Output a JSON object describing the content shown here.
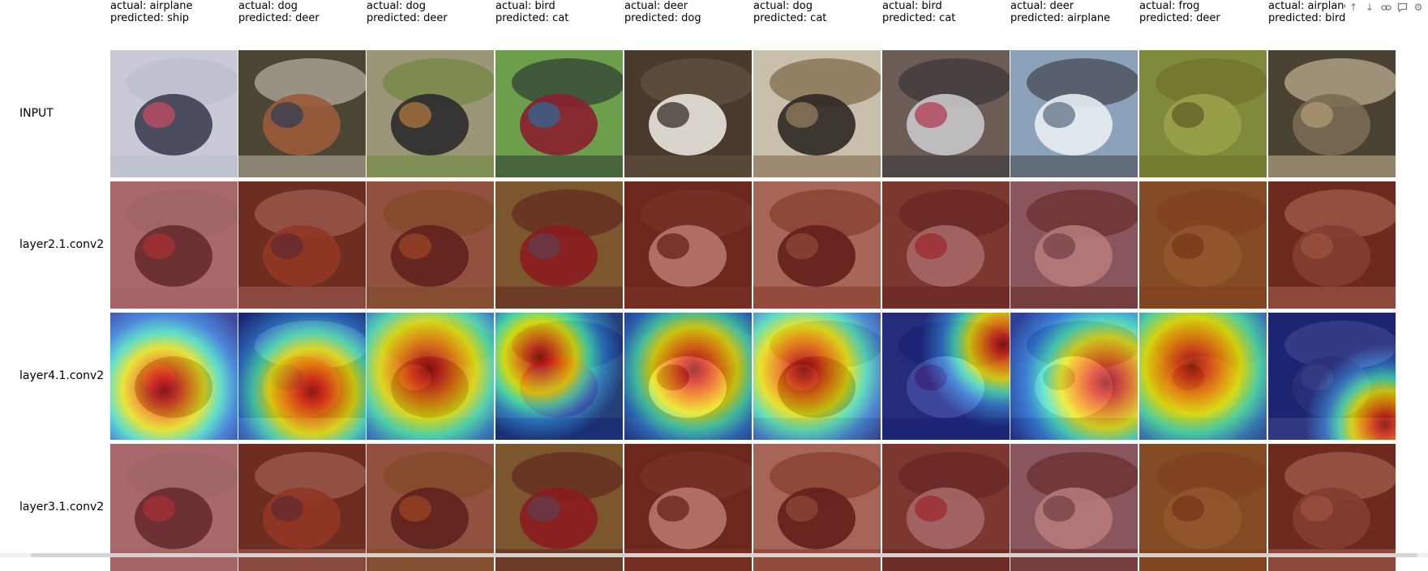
{
  "columns": [
    {
      "actual": "actual: airplane",
      "predicted": "predicted: ship"
    },
    {
      "actual": "actual: dog",
      "predicted": "predicted: deer"
    },
    {
      "actual": "actual: dog",
      "predicted": "predicted: deer"
    },
    {
      "actual": "actual: bird",
      "predicted": "predicted: cat"
    },
    {
      "actual": "actual: deer",
      "predicted": "predicted: dog"
    },
    {
      "actual": "actual: dog",
      "predicted": "predicted: cat"
    },
    {
      "actual": "actual: bird",
      "predicted": "predicted: cat"
    },
    {
      "actual": "actual: deer",
      "predicted": "predicted: airplane"
    },
    {
      "actual": "actual: frog",
      "predicted": "predicted: deer"
    },
    {
      "actual": "actual: airplane",
      "predicted": "predicted: bird"
    }
  ],
  "rows": [
    {
      "label": "INPUT",
      "kind": "input"
    },
    {
      "label": "layer2.1.conv2",
      "kind": "overlay-red"
    },
    {
      "label": "layer4.1.conv2",
      "kind": "heatmap-jet"
    },
    {
      "label": "layer3.1.conv2",
      "kind": "overlay-red"
    }
  ],
  "toolbar": {
    "icons": [
      "arrow-up-icon",
      "arrow-down-icon",
      "link-icon",
      "comment-icon",
      "settings-icon"
    ]
  }
}
